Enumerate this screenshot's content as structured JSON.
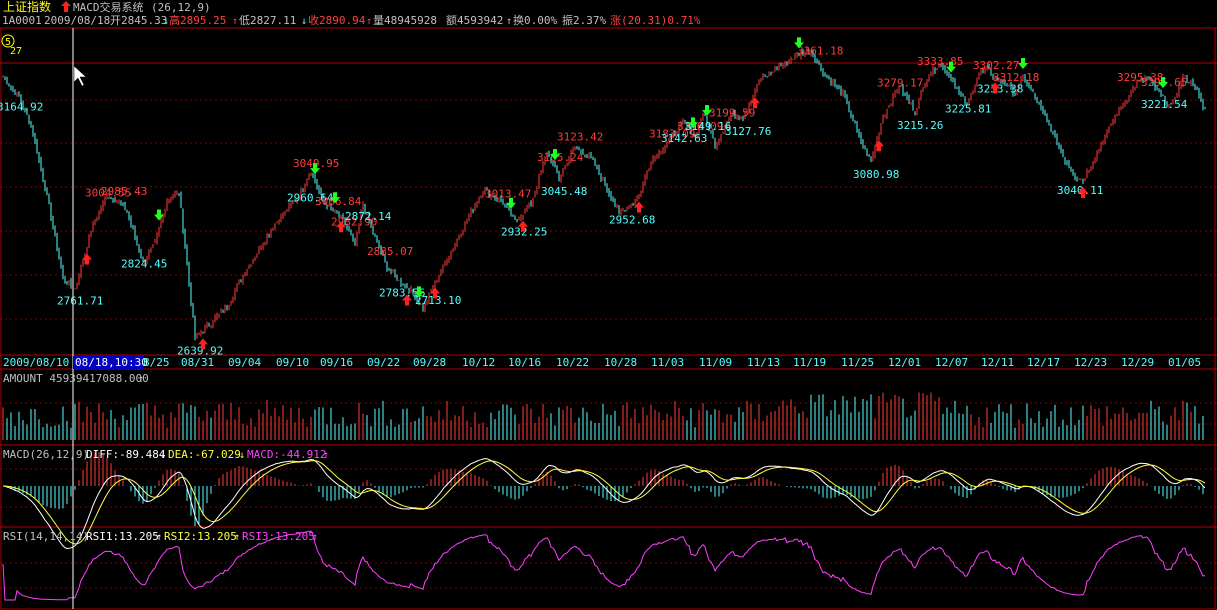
{
  "header": {
    "index_name": "上证指数",
    "indicator_label": "MACD交易系统",
    "indicator_params": "(26,12,9)",
    "code": "1A0001",
    "date": "2009/08/18",
    "open": "开2845.33",
    "high": "高2895.25",
    "low": "低2827.11",
    "close": "收2890.94",
    "volume": "量48945928",
    "amount": "额4593942",
    "turnover": "换0.00%",
    "amplitude": "振2.37%",
    "change": "涨(20.31)0.71%",
    "badge": "5",
    "corner_value": "27"
  },
  "axis": {
    "start_date": "2009/08/10",
    "cursor_label": "08/18,10:30",
    "ticks": [
      "8/25",
      "08/31",
      "09/04",
      "09/10",
      "09/16",
      "09/22",
      "09/28",
      "10/12",
      "10/16",
      "10/22",
      "10/28",
      "11/03",
      "11/09",
      "11/13",
      "11/19",
      "11/25",
      "12/01",
      "12/07",
      "12/11",
      "12/17",
      "12/23",
      "12/29",
      "01/05"
    ]
  },
  "amount_panel": {
    "label": "AMOUNT 45939417088.000"
  },
  "macd_panel": {
    "label": "MACD(26,12,9)",
    "diff": "DIFF:-89.484",
    "dea": "DEA:-67.029",
    "macd": "MACD:-44.912"
  },
  "rsi_panel": {
    "label": "RSI(14,14,14)",
    "rsi1": "RSI1:13.205",
    "rsi2": "RSI2:13.205",
    "rsi3": "RSI3:13.205"
  },
  "chart_data": {
    "type": "candlestick",
    "ylim": [
      2600,
      3420
    ],
    "colors": {
      "up": "#ff3b3b",
      "down": "#54ffff",
      "buy": "#ff2020",
      "sell": "#20ff20",
      "dea": "#ffff40",
      "rsi": "#ff40ff"
    },
    "anchors": [
      [
        0,
        3300
      ],
      [
        8,
        3250
      ],
      [
        14,
        3180
      ],
      [
        22,
        3000
      ],
      [
        30,
        2790
      ],
      [
        36,
        2765
      ],
      [
        45,
        2930
      ],
      [
        52,
        3000
      ],
      [
        58,
        2985
      ],
      [
        62,
        2960
      ],
      [
        70,
        2830
      ],
      [
        76,
        2880
      ],
      [
        82,
        2990
      ],
      [
        88,
        3010
      ],
      [
        96,
        2640
      ],
      [
        100,
        2660
      ],
      [
        112,
        2720
      ],
      [
        120,
        2800
      ],
      [
        136,
        2930
      ],
      [
        148,
        3000
      ],
      [
        154,
        3065
      ],
      [
        160,
        2985
      ],
      [
        170,
        2940
      ],
      [
        176,
        2875
      ],
      [
        180,
        2980
      ],
      [
        186,
        2895
      ],
      [
        192,
        2820
      ],
      [
        198,
        2785
      ],
      [
        204,
        2760
      ],
      [
        210,
        2715
      ],
      [
        218,
        2800
      ],
      [
        230,
        2920
      ],
      [
        240,
        3015
      ],
      [
        250,
        2985
      ],
      [
        256,
        2935
      ],
      [
        264,
        2980
      ],
      [
        272,
        3110
      ],
      [
        278,
        3045
      ],
      [
        286,
        3125
      ],
      [
        294,
        3095
      ],
      [
        300,
        3040
      ],
      [
        308,
        2955
      ],
      [
        314,
        2980
      ],
      [
        318,
        3000
      ],
      [
        324,
        3090
      ],
      [
        334,
        3145
      ],
      [
        340,
        3185
      ],
      [
        346,
        3150
      ],
      [
        350,
        3210
      ],
      [
        356,
        3130
      ],
      [
        364,
        3205
      ],
      [
        370,
        3200
      ],
      [
        378,
        3290
      ],
      [
        386,
        3320
      ],
      [
        398,
        3360
      ],
      [
        404,
        3370
      ],
      [
        410,
        3310
      ],
      [
        420,
        3260
      ],
      [
        428,
        3150
      ],
      [
        434,
        3085
      ],
      [
        440,
        3200
      ],
      [
        448,
        3280
      ],
      [
        456,
        3215
      ],
      [
        462,
        3300
      ],
      [
        468,
        3335
      ],
      [
        474,
        3300
      ],
      [
        478,
        3260
      ],
      [
        482,
        3230
      ],
      [
        488,
        3310
      ],
      [
        492,
        3320
      ],
      [
        496,
        3300
      ],
      [
        502,
        3280
      ],
      [
        506,
        3260
      ],
      [
        510,
        3300
      ],
      [
        516,
        3250
      ],
      [
        524,
        3170
      ],
      [
        530,
        3100
      ],
      [
        536,
        3050
      ],
      [
        540,
        3040
      ],
      [
        548,
        3120
      ],
      [
        556,
        3200
      ],
      [
        566,
        3280
      ],
      [
        572,
        3300
      ],
      [
        578,
        3260
      ],
      [
        584,
        3225
      ],
      [
        590,
        3300
      ],
      [
        596,
        3280
      ],
      [
        600,
        3220
      ]
    ],
    "labels": [
      {
        "i": 6,
        "v": "3164.92",
        "c": "down",
        "pos": "below"
      },
      {
        "i": 36,
        "v": "2761.71",
        "c": "down",
        "pos": "below"
      },
      {
        "i": 50,
        "v": "3004.55",
        "c": "up",
        "pos": "above"
      },
      {
        "i": 58,
        "v": "2985.43",
        "c": "up",
        "pos": "above"
      },
      {
        "i": 68,
        "v": "2824.45",
        "c": "down",
        "pos": "below"
      },
      {
        "i": 96,
        "v": "2639.92",
        "c": "down",
        "pos": "below"
      },
      {
        "i": 151,
        "v": "2960.64",
        "c": "down",
        "pos": "below"
      },
      {
        "i": 154,
        "v": "3049.95",
        "c": "up",
        "pos": "above"
      },
      {
        "i": 165,
        "v": "3066.84",
        "c": "up",
        "pos": "above"
      },
      {
        "i": 173,
        "v": "2982.90",
        "c": "up",
        "pos": "above"
      },
      {
        "i": 180,
        "v": "2872.14",
        "c": "down",
        "pos": "below"
      },
      {
        "i": 191,
        "v": "2885.07",
        "c": "up",
        "pos": "above"
      },
      {
        "i": 197,
        "v": "2783.56",
        "c": "down",
        "pos": "below"
      },
      {
        "i": 215,
        "v": "2713.10",
        "c": "down",
        "pos": "below"
      },
      {
        "i": 250,
        "v": "3013.47",
        "c": "up",
        "pos": "above"
      },
      {
        "i": 258,
        "v": "2932.25",
        "c": "down",
        "pos": "below"
      },
      {
        "i": 276,
        "v": "3105.24",
        "c": "up",
        "pos": "above"
      },
      {
        "i": 286,
        "v": "3123.42",
        "c": "up",
        "pos": "above"
      },
      {
        "i": 278,
        "v": "3045.48",
        "c": "down",
        "pos": "below"
      },
      {
        "i": 312,
        "v": "2952.68",
        "c": "down",
        "pos": "below"
      },
      {
        "i": 332,
        "v": "3183.09",
        "c": "up",
        "pos": "above"
      },
      {
        "i": 338,
        "v": "3142.63",
        "c": "down",
        "pos": "below"
      },
      {
        "i": 346,
        "v": "3210.09",
        "c": "up",
        "pos": "above"
      },
      {
        "i": 350,
        "v": "3149.16",
        "c": "down",
        "pos": "below"
      },
      {
        "i": 362,
        "v": "3199.59",
        "c": "up",
        "pos": "above"
      },
      {
        "i": 370,
        "v": "3127.76",
        "c": "down",
        "pos": "below"
      },
      {
        "i": 406,
        "v": "3361.18",
        "c": "up",
        "pos": "above"
      },
      {
        "i": 434,
        "v": "3080.98",
        "c": "down",
        "pos": "below"
      },
      {
        "i": 446,
        "v": "3279.17",
        "c": "up",
        "pos": "above"
      },
      {
        "i": 456,
        "v": "3215.26",
        "c": "down",
        "pos": "below"
      },
      {
        "i": 466,
        "v": "3333.85",
        "c": "up",
        "pos": "above"
      },
      {
        "i": 480,
        "v": "3225.81",
        "c": "down",
        "pos": "below"
      },
      {
        "i": 494,
        "v": "3302.27",
        "c": "up",
        "pos": "above"
      },
      {
        "i": 504,
        "v": "3312.18",
        "c": "up",
        "pos": "above"
      },
      {
        "i": 496,
        "v": "3233.38",
        "c": "down",
        "pos": "below"
      },
      {
        "i": 536,
        "v": "3040.11",
        "c": "down",
        "pos": "below"
      },
      {
        "i": 566,
        "v": "3295.38",
        "c": "up",
        "pos": "above"
      },
      {
        "i": 578,
        "v": "3295.65",
        "c": "up",
        "pos": "above"
      },
      {
        "i": 578,
        "v": "3221.54",
        "c": "down",
        "pos": "below"
      }
    ],
    "signals": [
      {
        "i": 42,
        "t": "buy"
      },
      {
        "i": 78,
        "t": "sell"
      },
      {
        "i": 100,
        "t": "buy"
      },
      {
        "i": 156,
        "t": "sell"
      },
      {
        "i": 166,
        "t": "sell"
      },
      {
        "i": 169,
        "t": "buy"
      },
      {
        "i": 202,
        "t": "buy"
      },
      {
        "i": 208,
        "t": "sell"
      },
      {
        "i": 216,
        "t": "buy"
      },
      {
        "i": 254,
        "t": "sell"
      },
      {
        "i": 260,
        "t": "buy"
      },
      {
        "i": 276,
        "t": "sell"
      },
      {
        "i": 318,
        "t": "buy"
      },
      {
        "i": 345,
        "t": "sell"
      },
      {
        "i": 352,
        "t": "sell"
      },
      {
        "i": 376,
        "t": "buy"
      },
      {
        "i": 398,
        "t": "sell"
      },
      {
        "i": 438,
        "t": "buy"
      },
      {
        "i": 474,
        "t": "sell"
      },
      {
        "i": 496,
        "t": "buy"
      },
      {
        "i": 510,
        "t": "sell"
      },
      {
        "i": 540,
        "t": "buy"
      },
      {
        "i": 580,
        "t": "sell"
      }
    ]
  }
}
